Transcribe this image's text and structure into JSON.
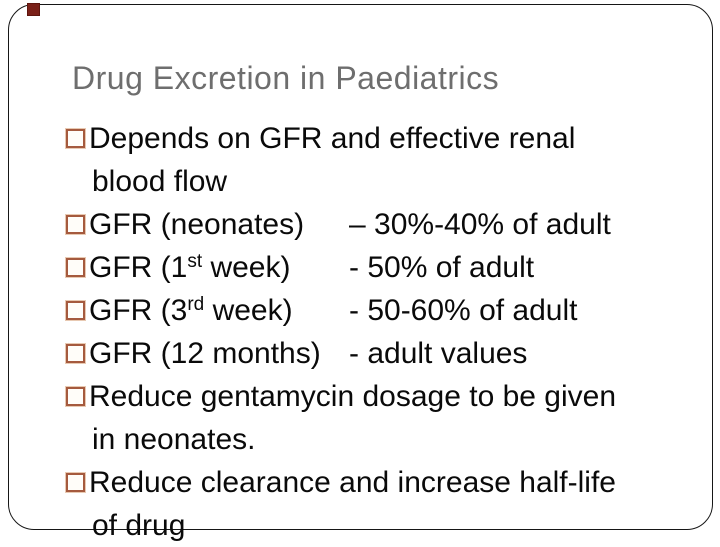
{
  "slide": {
    "title": "Drug Excretion in Paediatrics",
    "colors": {
      "background": "#ffffff",
      "title_gray": "#6e6e6e",
      "body_text": "#0a0a0a",
      "bullet_outline": "#a55a3e",
      "frame_border": "#161616",
      "corner_marker": "#7a2018"
    },
    "body": {
      "rows": [
        {
          "text": "Depends on GFR and effective renal"
        },
        {
          "text": "blood flow"
        },
        {
          "label": "GFR (neonates)",
          "value": "– 30%-40% of adult"
        },
        {
          "label_pre": "GFR (1",
          "sup": "st",
          "label_post": " week)",
          "value": "- 50% of adult"
        },
        {
          "label_pre": "GFR (3",
          "sup": "rd",
          "label_post": " week)",
          "value": "- 50-60% of adult"
        },
        {
          "label": "GFR (12 months)",
          "value": "- adult values"
        },
        {
          "text": "Reduce gentamycin dosage to be given"
        },
        {
          "text": "in neonates."
        },
        {
          "text": "Reduce clearance and increase half-life"
        },
        {
          "text": "of drug"
        }
      ]
    }
  }
}
